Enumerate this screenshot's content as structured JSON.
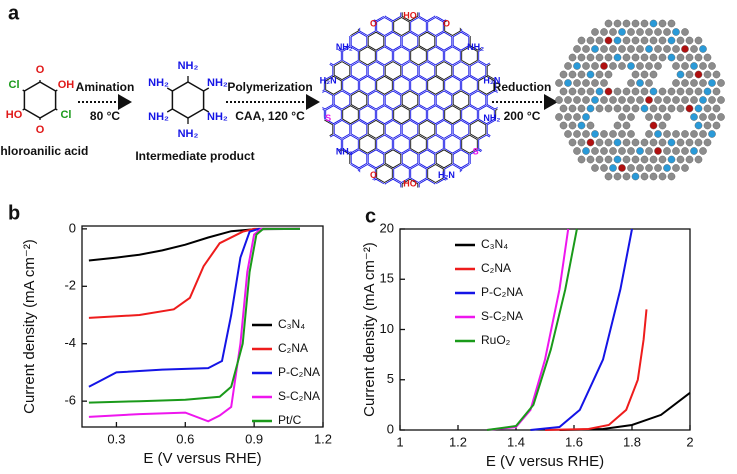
{
  "scheme": {
    "panel": "a",
    "reactant": {
      "atoms": [
        "O",
        "OH",
        "Cl",
        "O",
        "HO",
        "Cl"
      ],
      "name": "Chloroanilic acid"
    },
    "intermediate": {
      "atoms": [
        "NH₂",
        "NH₂",
        "NH₂",
        "NH₂",
        "NH₂",
        "NH₂"
      ],
      "name": "Intermediate product"
    },
    "steps": [
      {
        "label": "Amination",
        "condition": "80 °C"
      },
      {
        "label": "Polymerization",
        "condition": "CAA, 120 °C"
      },
      {
        "label": "Reduction",
        "condition": "200 °C"
      }
    ],
    "network_labels": [
      "HO",
      "O",
      "NH₂",
      "H₂N",
      "NH₂",
      "S",
      "H₂N",
      "HO",
      "O",
      "NH₂",
      "S",
      "H₂N",
      "NH₂",
      "O"
    ]
  },
  "chart_data": [
    {
      "type": "line",
      "panel": "b",
      "xlabel": "E (V versus RHE)",
      "ylabel": "Current density (mA cm⁻²)",
      "xlim": [
        0.15,
        1.2
      ],
      "xticks": [
        0.3,
        0.6,
        0.9,
        1.2
      ],
      "ylim": [
        -6.9,
        0.1
      ],
      "yticks": [
        0,
        -2,
        -4,
        -6
      ],
      "legend": "lower right",
      "series": [
        {
          "name": "C₃N₄",
          "color": "#000000",
          "x": [
            0.18,
            0.3,
            0.4,
            0.5,
            0.6,
            0.7,
            0.8,
            0.9,
            1.1
          ],
          "values": [
            -1.1,
            -1.0,
            -0.9,
            -0.75,
            -0.55,
            -0.3,
            -0.08,
            -0.01,
            0
          ]
        },
        {
          "name": "C₂NA",
          "color": "#ee1c1c",
          "x": [
            0.18,
            0.4,
            0.55,
            0.62,
            0.68,
            0.75,
            0.85,
            0.9,
            1.1
          ],
          "values": [
            -3.1,
            -3.0,
            -2.8,
            -2.4,
            -1.3,
            -0.5,
            -0.1,
            0,
            0
          ]
        },
        {
          "name": "P-C₂NA",
          "color": "#1414e6",
          "x": [
            0.18,
            0.3,
            0.5,
            0.7,
            0.76,
            0.8,
            0.84,
            0.88,
            0.92,
            1.1
          ],
          "values": [
            -5.5,
            -5.0,
            -4.9,
            -4.85,
            -4.6,
            -3.0,
            -1.0,
            -0.1,
            0,
            0
          ]
        },
        {
          "name": "S-C₂NA",
          "color": "#ee16ee",
          "x": [
            0.18,
            0.4,
            0.6,
            0.7,
            0.75,
            0.8,
            0.84,
            0.87,
            0.9,
            0.93,
            1.1
          ],
          "values": [
            -6.55,
            -6.45,
            -6.4,
            -6.7,
            -6.5,
            -6.2,
            -4.0,
            -1.5,
            -0.2,
            0,
            0
          ]
        },
        {
          "name": "Pt/C",
          "color": "#1a9a1a",
          "x": [
            0.18,
            0.4,
            0.6,
            0.75,
            0.8,
            0.85,
            0.88,
            0.91,
            0.94,
            1.1
          ],
          "values": [
            -6.05,
            -6.0,
            -5.95,
            -5.85,
            -5.5,
            -4.0,
            -1.5,
            -0.2,
            0,
            0
          ]
        }
      ]
    },
    {
      "type": "line",
      "panel": "c",
      "xlabel": "E (V versus RHE)",
      "ylabel": "Current density (mA cm⁻²)",
      "xlim": [
        1.0,
        2.0
      ],
      "xticks": [
        1.0,
        1.2,
        1.4,
        1.6,
        1.8,
        2.0
      ],
      "ylim": [
        0,
        20
      ],
      "yticks": [
        0,
        5,
        10,
        15,
        20
      ],
      "legend": "upper left",
      "series": [
        {
          "name": "C₃N₄",
          "color": "#000000",
          "x": [
            1.55,
            1.7,
            1.8,
            1.9,
            2.0
          ],
          "values": [
            0,
            0.1,
            0.5,
            1.5,
            3.7
          ]
        },
        {
          "name": "C₂NA",
          "color": "#ee1c1c",
          "x": [
            1.5,
            1.65,
            1.72,
            1.78,
            1.82,
            1.84,
            1.85
          ],
          "values": [
            0,
            0.1,
            0.5,
            2,
            5,
            9,
            12
          ]
        },
        {
          "name": "P-C₂NA",
          "color": "#1414e6",
          "x": [
            1.45,
            1.55,
            1.62,
            1.7,
            1.76,
            1.8
          ],
          "values": [
            0,
            0.3,
            2,
            7,
            14,
            20
          ]
        },
        {
          "name": "S-C₂NA",
          "color": "#ee16ee",
          "x": [
            1.3,
            1.4,
            1.45,
            1.5,
            1.55,
            1.58
          ],
          "values": [
            0,
            0.3,
            2,
            7,
            14,
            20
          ]
        },
        {
          "name": "RuO₂",
          "color": "#1a9a1a",
          "x": [
            1.3,
            1.4,
            1.46,
            1.52,
            1.57,
            1.61
          ],
          "values": [
            0,
            0.4,
            2.5,
            8,
            14,
            20
          ]
        }
      ]
    }
  ]
}
